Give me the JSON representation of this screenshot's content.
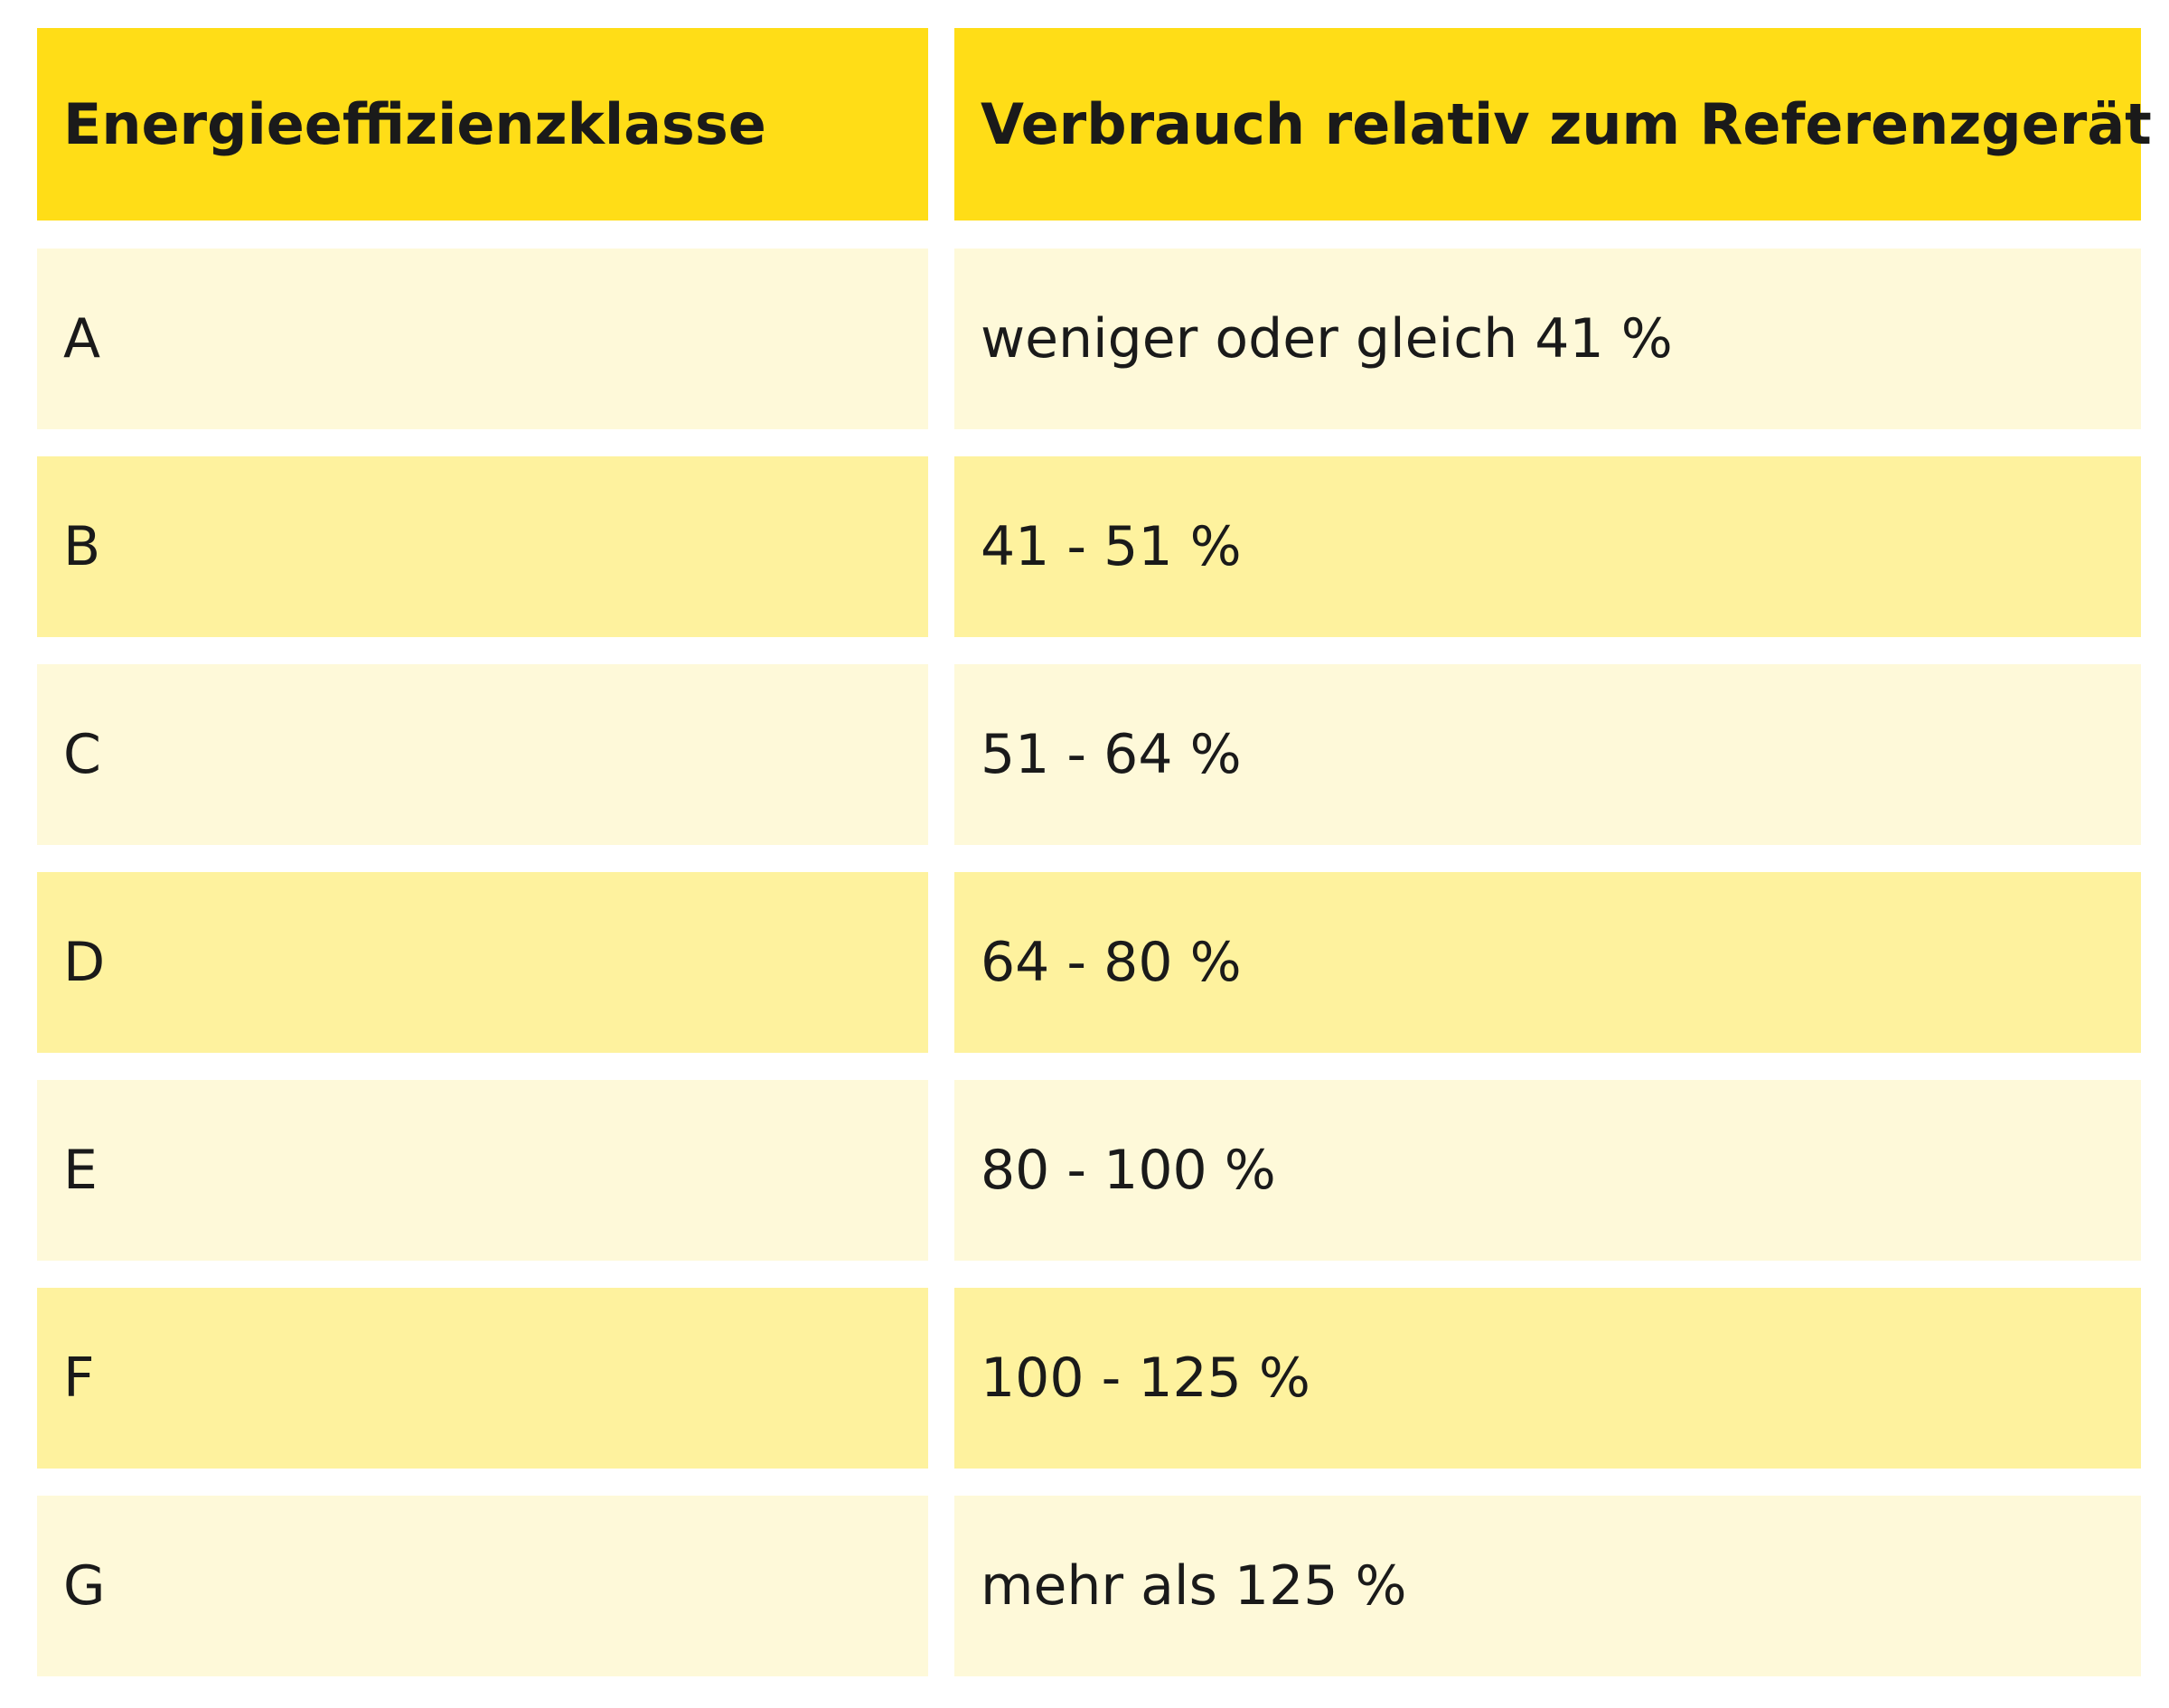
{
  "table": {
    "header": [
      "Energieeffizienzklasse",
      "Verbrauch relativ zum Referenzgerät"
    ],
    "rows": [
      [
        "A",
        "weniger oder gleich 41 %"
      ],
      [
        "B",
        "41 - 51 %"
      ],
      [
        "C",
        "51 - 64 %"
      ],
      [
        "D",
        "64 - 80 %"
      ],
      [
        "E",
        "80 - 100 %"
      ],
      [
        "F",
        "100 - 125 %"
      ],
      [
        "G",
        "mehr als 125 %"
      ]
    ]
  }
}
